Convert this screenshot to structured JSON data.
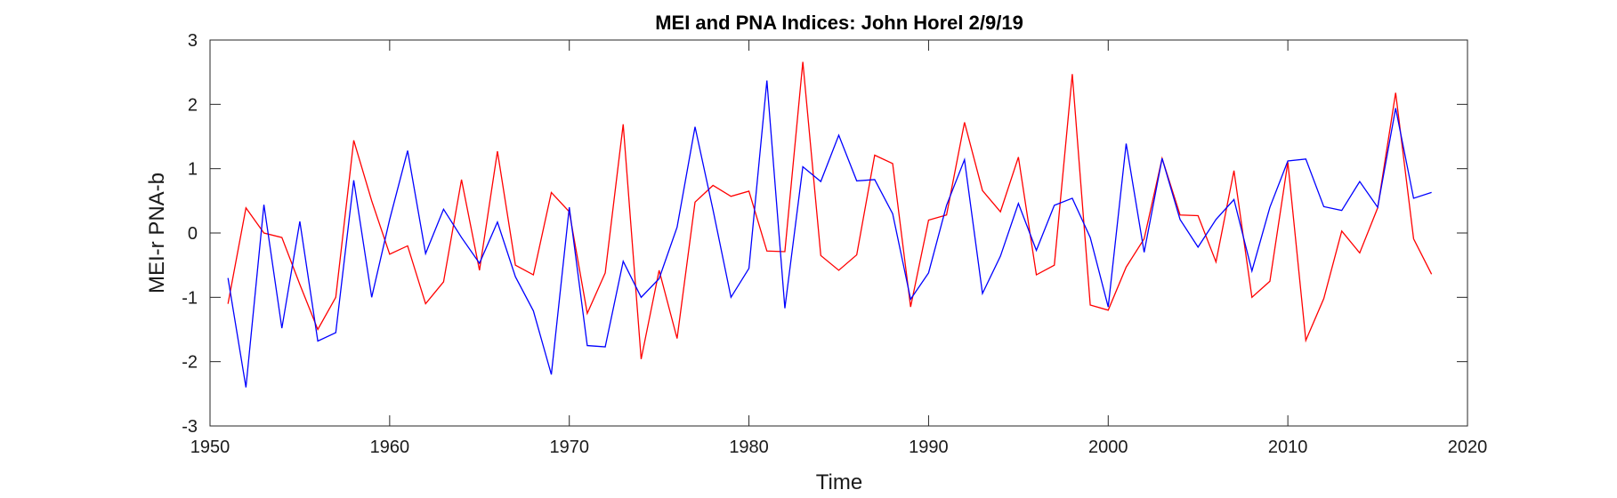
{
  "chart_data": {
    "type": "line",
    "title": "MEI and PNA Indices: John Horel 2/9/19",
    "xlabel": "Time",
    "ylabel": "MEI-r PNA-b",
    "xlim": [
      1950,
      2020
    ],
    "ylim": [
      -3,
      3
    ],
    "xticks": [
      1950,
      1960,
      1970,
      1980,
      1990,
      2000,
      2010,
      2020
    ],
    "yticks": [
      -3,
      -2,
      -1,
      0,
      1,
      2,
      3
    ],
    "grid": false,
    "x": [
      1951,
      1952,
      1953,
      1954,
      1955,
      1956,
      1957,
      1958,
      1959,
      1960,
      1961,
      1962,
      1963,
      1964,
      1965,
      1966,
      1967,
      1968,
      1969,
      1970,
      1971,
      1972,
      1973,
      1974,
      1975,
      1976,
      1977,
      1978,
      1979,
      1980,
      1981,
      1982,
      1983,
      1984,
      1985,
      1986,
      1987,
      1988,
      1989,
      1990,
      1991,
      1992,
      1993,
      1994,
      1995,
      1996,
      1997,
      1998,
      1999,
      2000,
      2001,
      2002,
      2003,
      2004,
      2005,
      2006,
      2007,
      2008,
      2009,
      2010,
      2011,
      2012,
      2013,
      2014,
      2015,
      2016,
      2017,
      2018
    ],
    "series": [
      {
        "color": "#ff0000",
        "values": [
          -1.1,
          0.39,
          0.0,
          -0.07,
          -0.8,
          -1.5,
          -1.0,
          1.44,
          0.5,
          -0.33,
          -0.2,
          -1.1,
          -0.76,
          0.83,
          -0.58,
          1.27,
          -0.5,
          -0.65,
          0.63,
          0.33,
          -1.25,
          -0.62,
          1.69,
          -1.96,
          -0.58,
          -1.64,
          0.48,
          0.74,
          0.57,
          0.65,
          -0.28,
          -0.29,
          2.66,
          -0.35,
          -0.58,
          -0.34,
          1.21,
          1.08,
          -1.15,
          0.2,
          0.28,
          1.72,
          0.66,
          0.33,
          1.18,
          -0.65,
          -0.5,
          2.47,
          -1.12,
          -1.2,
          -0.53,
          -0.09,
          1.16,
          0.28,
          0.27,
          -0.45,
          0.97,
          -1.0,
          -0.75,
          1.1,
          -1.67,
          -1.02,
          0.03,
          -0.31,
          0.39,
          2.18,
          -0.09,
          -0.64
        ]
      },
      {
        "color": "#0000ff",
        "values": [
          -0.7,
          -2.4,
          0.44,
          -1.48,
          0.18,
          -1.68,
          -1.55,
          0.82,
          -1.0,
          0.21,
          1.28,
          -0.32,
          0.37,
          -0.07,
          -0.47,
          0.17,
          -0.68,
          -1.21,
          -2.2,
          0.4,
          -1.75,
          -1.77,
          -0.44,
          -1.0,
          -0.71,
          0.09,
          1.65,
          0.36,
          -1.0,
          -0.55,
          2.37,
          -1.17,
          1.03,
          0.8,
          1.52,
          0.81,
          0.83,
          0.3,
          -1.03,
          -0.62,
          0.43,
          1.14,
          -0.94,
          -0.36,
          0.46,
          -0.27,
          0.43,
          0.54,
          -0.07,
          -1.15,
          1.39,
          -0.3,
          1.16,
          0.21,
          -0.22,
          0.21,
          0.52,
          -0.59,
          0.4,
          1.12,
          1.15,
          0.41,
          0.35,
          0.8,
          0.4,
          1.94,
          0.54,
          0.63
        ]
      }
    ]
  }
}
